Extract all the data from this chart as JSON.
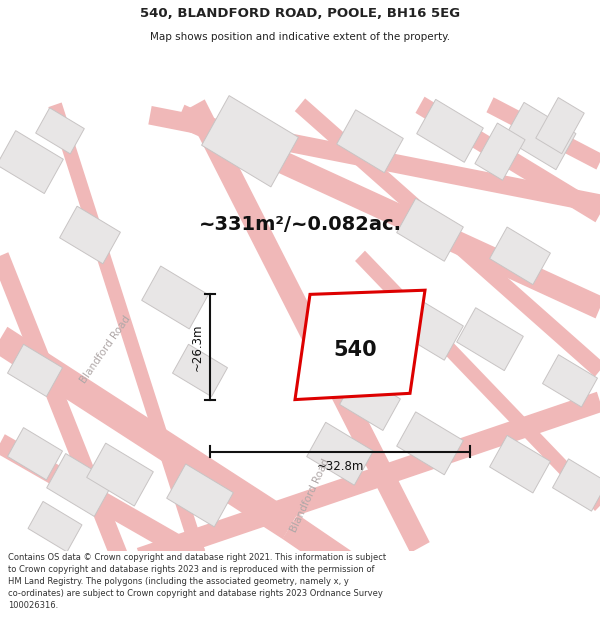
{
  "title": "540, BLANDFORD ROAD, POOLE, BH16 5EG",
  "subtitle": "Map shows position and indicative extent of the property.",
  "area_text": "~331m²/~0.082ac.",
  "plot_number": "540",
  "dim_width": "~32.8m",
  "dim_height": "~26.3m",
  "footer": "Contains OS data © Crown copyright and database right 2021. This information is subject to Crown copyright and database rights 2023 and is reproduced with the permission of HM Land Registry. The polygons (including the associated geometry, namely x, y co-ordinates) are subject to Crown copyright and database rights 2023 Ordnance Survey 100026316.",
  "map_bg": "#ffffff",
  "road_color": "#f0b8b8",
  "building_fill": "#e8e6e6",
  "building_edge": "#c8c4c4",
  "plot_fill": "#ffffff",
  "plot_edge": "#dd0000",
  "road_label_color": "#b0a8a8",
  "title_color": "#222222",
  "text_color": "#111111",
  "footer_color": "#333333",
  "dim_line_color": "#111111"
}
